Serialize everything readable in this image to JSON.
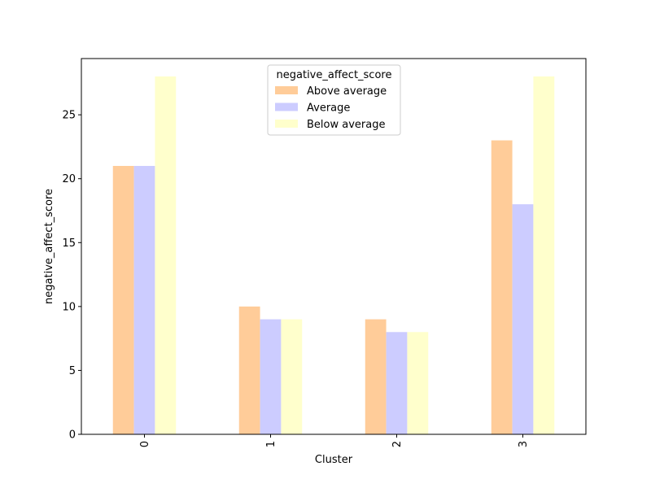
{
  "chart_data": {
    "type": "bar",
    "categories": [
      "0",
      "1",
      "2",
      "3"
    ],
    "series": [
      {
        "name": "Above average",
        "values": [
          21,
          10,
          9,
          23
        ],
        "color": "#ffcc99"
      },
      {
        "name": "Average",
        "values": [
          21,
          9,
          8,
          18
        ],
        "color": "#ccccff"
      },
      {
        "name": "Below average",
        "values": [
          28,
          9,
          8,
          28
        ],
        "color": "#ffffcc"
      }
    ],
    "title": "",
    "xlabel": "Cluster",
    "ylabel": "negative_affect_score",
    "ylim": [
      0,
      29.4
    ],
    "yticks": [
      "0",
      "5",
      "10",
      "15",
      "20",
      "25"
    ],
    "legend_title": "negative_affect_score",
    "legend_position": "top-center",
    "grid": false,
    "xtick_rotation": "vertical"
  }
}
